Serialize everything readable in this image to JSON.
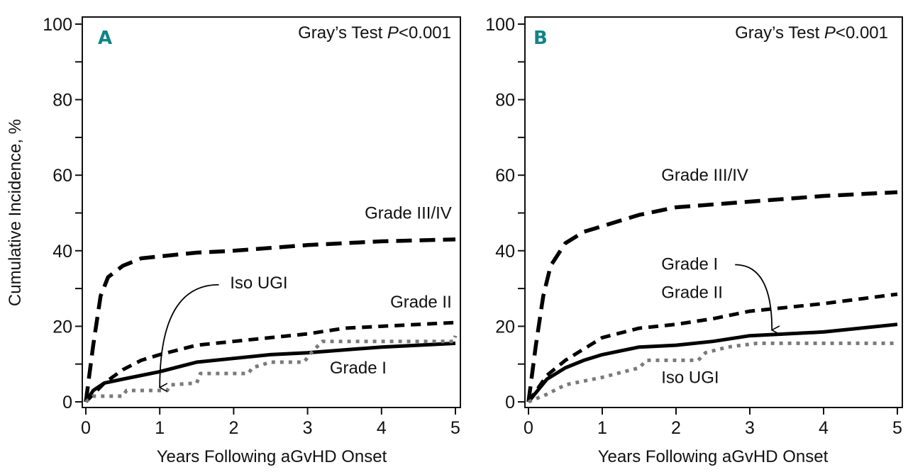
{
  "chart_data": [
    {
      "type": "line",
      "panel": "A",
      "title": "",
      "annotation": "Gray’s Test",
      "annotation_p": "P",
      "annotation_value": "<0.001",
      "xlabel": "Years Following aGvHD Onset",
      "ylabel": "Cumulative Incidence, %",
      "xlim": [
        0,
        5
      ],
      "ylim": [
        0,
        100
      ],
      "xticks": [
        0,
        1,
        2,
        3,
        4,
        5
      ],
      "yticks_labeled": [
        0,
        20,
        40,
        60,
        80,
        100
      ],
      "yticks_minor": [
        10,
        30,
        50,
        70,
        90
      ],
      "grid": false,
      "series": [
        {
          "name": "Grade III/IV",
          "style": "long-dash",
          "color": "#000000",
          "x": [
            0,
            0.1,
            0.2,
            0.3,
            0.5,
            0.75,
            1,
            1.5,
            2,
            3,
            4,
            5
          ],
          "y": [
            0,
            15,
            28,
            33,
            36,
            38,
            38.5,
            39.5,
            40,
            41.5,
            42.5,
            43
          ]
        },
        {
          "name": "Grade II",
          "style": "dash",
          "color": "#000000",
          "x": [
            0,
            0.25,
            0.5,
            0.75,
            1,
            1.5,
            2,
            2.5,
            3,
            3.5,
            4,
            5
          ],
          "y": [
            0,
            5,
            8.5,
            11,
            12.5,
            15,
            16,
            17,
            18,
            19.5,
            20,
            21
          ]
        },
        {
          "name": "Grade I",
          "style": "solid",
          "color": "#000000",
          "x": [
            0,
            0.1,
            0.25,
            0.5,
            1,
            1.5,
            2,
            2.5,
            3,
            4,
            5
          ],
          "y": [
            0,
            3,
            5,
            6,
            8,
            10.5,
            11.5,
            12.5,
            13,
            14.5,
            15.5
          ]
        },
        {
          "name": "Iso UGI",
          "style": "dotted",
          "color": "#7a7a7a",
          "x": [
            0,
            0.1,
            0.5,
            0.55,
            1.1,
            1.15,
            1.5,
            1.55,
            2.2,
            2.25,
            2.5,
            2.95,
            3.05,
            3.2,
            4.98,
            5
          ],
          "y": [
            0,
            1.5,
            1.5,
            3,
            3,
            4.5,
            5,
            7.5,
            7.5,
            9,
            10.5,
            10.5,
            13,
            16,
            16,
            17.5
          ]
        }
      ],
      "labels": [
        {
          "text": "Grade III/IV",
          "x": 4.95,
          "y": 48.5,
          "anchor": "end"
        },
        {
          "text": "Iso UGI",
          "x": 1.95,
          "y": 30,
          "anchor": "start"
        },
        {
          "text": "Grade II",
          "x": 4.95,
          "y": 25,
          "anchor": "end"
        },
        {
          "text": "Grade I",
          "x": 3.3,
          "y": 7.5,
          "anchor": "start"
        }
      ],
      "arrow": {
        "from_label": "Iso UGI",
        "from": [
          1.8,
          31
        ],
        "to": [
          1.0,
          3.8
        ]
      }
    },
    {
      "type": "line",
      "panel": "B",
      "title": "",
      "annotation": "Gray’s Test",
      "annotation_p": "P",
      "annotation_value": "<0.001",
      "xlabel": "Years Following aGvHD Onset",
      "ylabel": "",
      "xlim": [
        0,
        5
      ],
      "ylim": [
        0,
        100
      ],
      "xticks": [
        0,
        1,
        2,
        3,
        4,
        5
      ],
      "yticks_labeled": [
        0,
        20,
        40,
        60,
        80,
        100
      ],
      "yticks_minor": [
        10,
        30,
        50,
        70,
        90
      ],
      "grid": false,
      "series": [
        {
          "name": "Grade III/IV",
          "style": "long-dash",
          "color": "#000000",
          "x": [
            0,
            0.1,
            0.2,
            0.3,
            0.5,
            0.75,
            1,
            1.5,
            2,
            3,
            4,
            5
          ],
          "y": [
            0,
            15,
            28,
            36,
            42,
            45,
            46.5,
            49.5,
            51.5,
            53,
            54.5,
            55.5
          ]
        },
        {
          "name": "Grade II",
          "style": "dash",
          "color": "#000000",
          "x": [
            0,
            0.25,
            0.5,
            0.75,
            1,
            1.5,
            2,
            2.5,
            3,
            3.5,
            4,
            5
          ],
          "y": [
            0,
            7,
            11,
            14,
            17,
            19.5,
            20.5,
            22,
            24,
            25,
            26,
            28.5
          ]
        },
        {
          "name": "Grade I",
          "style": "solid",
          "color": "#000000",
          "x": [
            0,
            0.25,
            0.5,
            0.75,
            1,
            1.5,
            2,
            2.5,
            3,
            4,
            5
          ],
          "y": [
            0,
            6,
            9,
            11,
            12.5,
            14.5,
            15,
            16,
            17.5,
            18.5,
            20.5
          ]
        },
        {
          "name": "Iso UGI",
          "style": "dotted",
          "color": "#7a7a7a",
          "x": [
            0,
            0.25,
            0.5,
            0.75,
            1,
            1.5,
            1.6,
            2.3,
            2.4,
            2.7,
            3.1,
            5
          ],
          "y": [
            0,
            2,
            4.5,
            5.5,
            6.5,
            9,
            11,
            11,
            13,
            14.5,
            15.5,
            15.5
          ]
        }
      ],
      "labels": [
        {
          "text": "Grade III/IV",
          "x": 1.8,
          "y": 58.5,
          "anchor": "start"
        },
        {
          "text": "Grade I",
          "x": 1.8,
          "y": 35,
          "anchor": "start"
        },
        {
          "text": "Grade II",
          "x": 1.8,
          "y": 27.5,
          "anchor": "start"
        },
        {
          "text": "Iso UGI",
          "x": 1.8,
          "y": 5,
          "anchor": "start"
        }
      ],
      "arrow": {
        "from_label": "Grade I",
        "from": [
          2.8,
          36.3
        ],
        "to": [
          3.3,
          19
        ]
      }
    }
  ]
}
